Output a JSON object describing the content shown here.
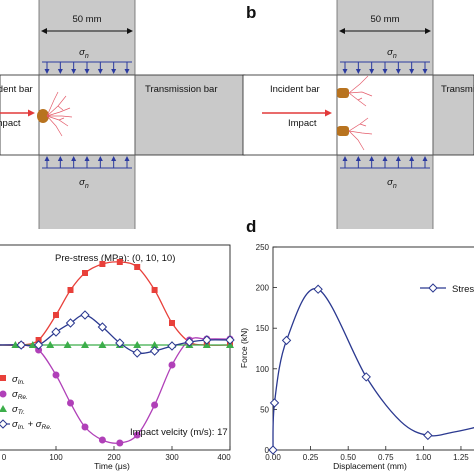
{
  "panel_a": {
    "dimension": "50 mm",
    "sigma_n_symbol": "σ",
    "sigma_n_sub": "n",
    "incident_label": "Incident bar",
    "transmission_label": "Transmission bar",
    "impact_label": "Impact"
  },
  "panel_b": {
    "letter": "b",
    "dimension": "50 mm",
    "sigma_n_symbol": "σ",
    "sigma_n_sub": "n",
    "incident_label": "Incident bar",
    "transmission_label": "Transmission bar",
    "impact_label": "Impact"
  },
  "panel_c": {
    "annotation_prestress": "Pre-stress (MPa): (0, 10, 10)",
    "annotation_velocity": "Impact velcity (m/s): 17",
    "legend": [
      {
        "symbol": "σ",
        "sub": "In.",
        "color": "#e8403a"
      },
      {
        "symbol": "σ",
        "sub": "Re.",
        "color": "#b040b8"
      },
      {
        "symbol": "σ",
        "sub": "Tr.",
        "color": "#3cae4a"
      },
      {
        "symbol": "σ",
        "sub": "In.",
        "plus": " + ",
        "symbol2": "σ",
        "sub2": "Re.",
        "color": "#2b3990"
      }
    ]
  },
  "panel_d": {
    "letter": "d",
    "legend_label": "Stress"
  },
  "chart_data": [
    {
      "type": "line",
      "panel": "c",
      "xlabel": "Time (μs)",
      "x_ticks": [
        0,
        100,
        200,
        300,
        400
      ],
      "xlim": [
        0,
        400
      ],
      "series": [
        {
          "color": "#e8403a",
          "marker": "square",
          "x": [
            0,
            40,
            70,
            100,
            125,
            150,
            180,
            210,
            240,
            270,
            300,
            330,
            360,
            400
          ],
          "y": [
            0,
            0,
            0.05,
            0.3,
            0.55,
            0.72,
            0.81,
            0.83,
            0.78,
            0.55,
            0.22,
            0.03,
            0,
            0
          ]
        },
        {
          "color": "#b040b8",
          "marker": "circle",
          "x": [
            0,
            40,
            70,
            100,
            125,
            150,
            180,
            210,
            240,
            270,
            300,
            330,
            360,
            400
          ],
          "y": [
            0,
            0,
            -0.05,
            -0.3,
            -0.58,
            -0.82,
            -0.95,
            -0.98,
            -0.9,
            -0.6,
            -0.2,
            0.05,
            0.06,
            0.06
          ]
        },
        {
          "color": "#3cae4a",
          "marker": "triangle",
          "x": [
            0,
            30,
            60,
            90,
            120,
            150,
            180,
            210,
            240,
            270,
            300,
            330,
            360,
            400
          ],
          "y": [
            0,
            0,
            0,
            0,
            0,
            0,
            0,
            0,
            0,
            0,
            0,
            0,
            0,
            0
          ]
        },
        {
          "color": "#2b3990",
          "marker": "diamond",
          "x": [
            0,
            40,
            70,
            100,
            125,
            150,
            180,
            210,
            240,
            270,
            300,
            330,
            360,
            400
          ],
          "y": [
            0,
            0,
            0,
            0.13,
            0.22,
            0.3,
            0.18,
            0.02,
            -0.08,
            -0.06,
            -0.01,
            0.03,
            0.05,
            0.05
          ]
        }
      ]
    },
    {
      "type": "line",
      "panel": "d",
      "xlabel": "Displacement (mm)",
      "ylabel": "Force (kN)",
      "xlim": [
        0,
        1.35
      ],
      "ylim": [
        0,
        250
      ],
      "x_ticks": [
        "0.00",
        "0.25",
        "0.50",
        "0.75",
        "1.00",
        "1.25"
      ],
      "y_ticks": [
        "0",
        "50",
        "100",
        "150",
        "200",
        "250"
      ],
      "markers": {
        "x": [
          0,
          0.01,
          0.09,
          0.3,
          0.62,
          1.03
        ],
        "y": [
          0,
          58,
          135,
          198,
          90,
          18
        ]
      },
      "curve": {
        "x": [
          0,
          0.01,
          0.09,
          0.3,
          0.62,
          0.85,
          1.03,
          1.2,
          1.35
        ],
        "y": [
          0,
          58,
          135,
          198,
          90,
          35,
          18,
          22,
          28
        ]
      }
    }
  ]
}
